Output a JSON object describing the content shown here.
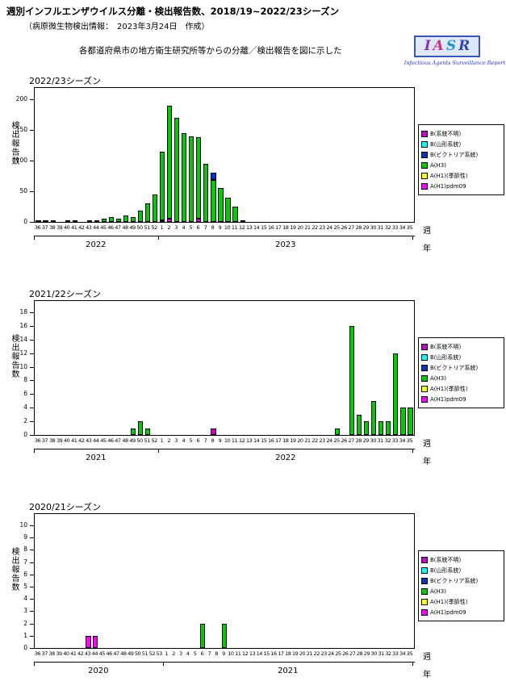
{
  "page": {
    "title": "週別インフルエンザウイルス分離・検出報告数、2018/19~2022/23シーズン",
    "subtitle": "（病原微生物検出情報：　2023年3月24日　作成）",
    "note": "各都道府県市の地方衛生研究所等からの分離／検出報告を図に示した",
    "y_axis_label": "検出報告数",
    "week_axis_label": "週",
    "year_axis_label": "年"
  },
  "logo": {
    "text": "IASR",
    "letters": [
      {
        "char": "I",
        "color": "#8833aa"
      },
      {
        "char": "A",
        "color": "#cc3388"
      },
      {
        "char": "S",
        "color": "#2299cc"
      },
      {
        "char": "R",
        "color": "#3344bb"
      }
    ],
    "caption": "Infectious Agents Surveillance Report"
  },
  "legend": {
    "items": [
      {
        "label": "B(系統不明)",
        "color": "#cc00cc"
      },
      {
        "label": "B(山形系統)",
        "color": "#00ffff"
      },
      {
        "label": "B(ビクトリア系統)",
        "color": "#0033cc"
      },
      {
        "label": "A(H3)",
        "color": "#00cc00"
      },
      {
        "label": "A(H1)(季節性)",
        "color": "#ffff00"
      },
      {
        "label": "A(H1)pdm09",
        "color": "#ff00ff"
      }
    ]
  },
  "chart_data": [
    {
      "type": "bar",
      "season": "2022/23シーズン",
      "ymax": 200,
      "ytick_step": 50,
      "grid": false,
      "legend_position": "right",
      "weeks": [
        "36",
        "37",
        "38",
        "39",
        "40",
        "41",
        "42",
        "43",
        "44",
        "45",
        "46",
        "47",
        "48",
        "49",
        "50",
        "51",
        "52",
        "1",
        "2",
        "3",
        "4",
        "5",
        "6",
        "7",
        "8",
        "9",
        "10",
        "11",
        "12",
        "13",
        "14",
        "15",
        "16",
        "17",
        "18",
        "19",
        "20",
        "21",
        "22",
        "23",
        "24",
        "25",
        "26",
        "27",
        "28",
        "29",
        "30",
        "31",
        "32",
        "33",
        "34",
        "35"
      ],
      "years": [
        {
          "label": "2022",
          "from": 0,
          "to": 16
        },
        {
          "label": "2023",
          "from": 17,
          "to": 51
        }
      ],
      "series": [
        {
          "name": "A(H1)pdm09",
          "color": "#ff00ff",
          "values": [
            0,
            0,
            0,
            0,
            0,
            0,
            0,
            0,
            0,
            0,
            0,
            0,
            0,
            0,
            0,
            0,
            0,
            3,
            5,
            0,
            0,
            0,
            5,
            0,
            0,
            0,
            0,
            0,
            0,
            0,
            0,
            0,
            0,
            0,
            0,
            0,
            0,
            0,
            0,
            0,
            0,
            0,
            0,
            0,
            0,
            0,
            0,
            0,
            0,
            0,
            0,
            0
          ]
        },
        {
          "name": "A(H3)",
          "color": "#00cc00",
          "values": [
            3,
            3,
            2,
            0,
            2,
            2,
            0,
            3,
            2,
            5,
            8,
            5,
            10,
            8,
            18,
            30,
            45,
            112,
            185,
            170,
            145,
            140,
            133,
            95,
            68,
            55,
            40,
            25,
            2,
            0,
            0,
            0,
            0,
            0,
            0,
            0,
            0,
            0,
            0,
            0,
            0,
            0,
            0,
            0,
            0,
            0,
            0,
            0,
            0,
            0,
            0,
            0
          ]
        },
        {
          "name": "B(ビクトリア系統)",
          "color": "#0033cc",
          "values": [
            0,
            0,
            0,
            0,
            0,
            0,
            0,
            0,
            0,
            0,
            0,
            0,
            0,
            0,
            0,
            0,
            0,
            0,
            0,
            0,
            0,
            0,
            0,
            0,
            12,
            0,
            0,
            0,
            0,
            0,
            0,
            0,
            0,
            0,
            0,
            0,
            0,
            0,
            0,
            0,
            0,
            0,
            0,
            0,
            0,
            0,
            0,
            0,
            0,
            0,
            0,
            0
          ]
        }
      ]
    },
    {
      "type": "bar",
      "season": "2021/22シーズン",
      "ymax": 18,
      "ytick_step": 2,
      "grid": false,
      "legend_position": "right",
      "weeks": [
        "36",
        "37",
        "38",
        "39",
        "40",
        "41",
        "42",
        "43",
        "44",
        "45",
        "46",
        "47",
        "48",
        "49",
        "50",
        "51",
        "52",
        "1",
        "2",
        "3",
        "4",
        "5",
        "6",
        "7",
        "8",
        "9",
        "10",
        "11",
        "12",
        "13",
        "14",
        "15",
        "16",
        "17",
        "18",
        "19",
        "20",
        "21",
        "22",
        "23",
        "24",
        "25",
        "26",
        "27",
        "28",
        "29",
        "30",
        "31",
        "32",
        "33",
        "34",
        "35"
      ],
      "years": [
        {
          "label": "2021",
          "from": 0,
          "to": 16
        },
        {
          "label": "2022",
          "from": 17,
          "to": 51
        }
      ],
      "series": [
        {
          "name": "A(H3)",
          "color": "#00cc00",
          "values": [
            0,
            0,
            0,
            0,
            0,
            0,
            0,
            0,
            0,
            0,
            0,
            0,
            0,
            1,
            2,
            1,
            0,
            0,
            0,
            0,
            0,
            0,
            0,
            0,
            0,
            0,
            0,
            0,
            0,
            0,
            0,
            0,
            0,
            0,
            0,
            0,
            0,
            0,
            0,
            0,
            0,
            1,
            0,
            16,
            3,
            2,
            5,
            2,
            2,
            12,
            4,
            4
          ]
        },
        {
          "name": "B(系統不明)",
          "color": "#cc00cc",
          "values": [
            0,
            0,
            0,
            0,
            0,
            0,
            0,
            0,
            0,
            0,
            0,
            0,
            0,
            0,
            0,
            0,
            0,
            0,
            0,
            0,
            0,
            0,
            0,
            0,
            1,
            0,
            0,
            0,
            0,
            0,
            0,
            0,
            0,
            0,
            0,
            0,
            0,
            0,
            0,
            0,
            0,
            0,
            0,
            0,
            0,
            0,
            0,
            0,
            0,
            0,
            0,
            0
          ]
        }
      ]
    },
    {
      "type": "bar",
      "season": "2020/21シーズン",
      "ymax": 10,
      "ytick_step": 1,
      "grid": false,
      "legend_position": "right",
      "weeks": [
        "36",
        "37",
        "38",
        "39",
        "40",
        "41",
        "42",
        "43",
        "44",
        "45",
        "46",
        "47",
        "48",
        "49",
        "50",
        "51",
        "52",
        "53",
        "1",
        "2",
        "3",
        "4",
        "5",
        "6",
        "7",
        "8",
        "9",
        "10",
        "11",
        "12",
        "13",
        "14",
        "15",
        "16",
        "17",
        "18",
        "19",
        "20",
        "21",
        "22",
        "23",
        "24",
        "25",
        "26",
        "27",
        "28",
        "29",
        "30",
        "31",
        "32",
        "33",
        "34",
        "35"
      ],
      "years": [
        {
          "label": "2020",
          "from": 0,
          "to": 17
        },
        {
          "label": "2021",
          "from": 18,
          "to": 52
        }
      ],
      "series": [
        {
          "name": "A(H1)pdm09",
          "color": "#ff00ff",
          "values": [
            0,
            0,
            0,
            0,
            0,
            0,
            0,
            1,
            1,
            0,
            0,
            0,
            0,
            0,
            0,
            0,
            0,
            0,
            0,
            0,
            0,
            0,
            0,
            0,
            0,
            0,
            0,
            0,
            0,
            0,
            0,
            0,
            0,
            0,
            0,
            0,
            0,
            0,
            0,
            0,
            0,
            0,
            0,
            0,
            0,
            0,
            0,
            0,
            0,
            0,
            0,
            0,
            0
          ]
        },
        {
          "name": "A(H3)",
          "color": "#00cc00",
          "values": [
            0,
            0,
            0,
            0,
            0,
            0,
            0,
            0,
            0,
            0,
            0,
            0,
            0,
            0,
            0,
            0,
            0,
            0,
            0,
            0,
            0,
            0,
            0,
            2,
            0,
            0,
            2,
            0,
            0,
            0,
            0,
            0,
            0,
            0,
            0,
            0,
            0,
            0,
            0,
            0,
            0,
            0,
            0,
            0,
            0,
            0,
            0,
            0,
            0,
            0,
            0,
            0,
            0
          ]
        }
      ]
    }
  ]
}
